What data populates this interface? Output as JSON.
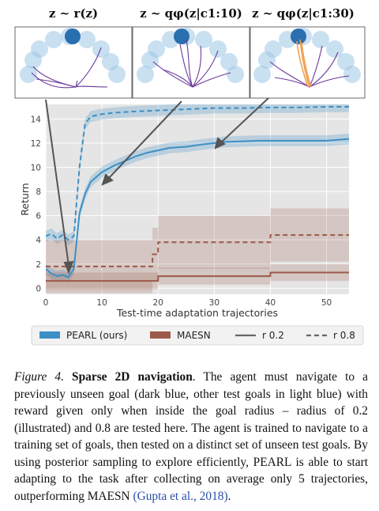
{
  "panels": [
    {
      "title": "z ~ r(z)"
    },
    {
      "title": "z ~ qφ(z|c1:10)"
    },
    {
      "title": "z ~ qφ(z|c1:30)"
    }
  ],
  "chart_data": {
    "type": "line",
    "xlabel": "Test-time adaptation trajectories",
    "ylabel": "Return",
    "xlim": [
      0,
      54
    ],
    "ylim": [
      -0.5,
      15.2
    ],
    "xticks": [
      0,
      10,
      20,
      30,
      40,
      50
    ],
    "yticks": [
      0,
      2,
      4,
      6,
      8,
      10,
      12,
      14
    ],
    "grid": true,
    "legend_position": "bottom",
    "series": [
      {
        "name": "PEARL (ours)",
        "style": "solid",
        "color": "#3c8fc6",
        "x": [
          0,
          1,
          2,
          3,
          4,
          5,
          6,
          7,
          8,
          9,
          10,
          12,
          14,
          16,
          18,
          20,
          22,
          25,
          28,
          30,
          32,
          35,
          38,
          40,
          45,
          50,
          54
        ],
        "y": [
          1.6,
          1.2,
          1.0,
          1.1,
          0.9,
          1.6,
          6.2,
          7.8,
          8.8,
          9.2,
          9.6,
          10.1,
          10.5,
          10.9,
          11.2,
          11.4,
          11.6,
          11.7,
          11.9,
          12.0,
          12.1,
          12.15,
          12.2,
          12.2,
          12.2,
          12.2,
          12.35
        ]
      },
      {
        "name": "PEARL (ours)",
        "style": "dashed",
        "color": "#3c8fc6",
        "x": [
          0,
          1,
          2,
          3,
          4,
          5,
          6,
          7,
          8,
          9,
          10,
          12,
          15,
          20,
          25,
          30,
          35,
          40,
          45,
          50,
          54
        ],
        "y": [
          4.3,
          4.5,
          4.1,
          4.4,
          4.0,
          4.3,
          10.0,
          13.6,
          14.2,
          14.3,
          14.4,
          14.5,
          14.6,
          14.7,
          14.8,
          14.9,
          14.9,
          14.95,
          14.95,
          15.0,
          15.0
        ]
      },
      {
        "name": "MAESN",
        "style": "solid",
        "color": "#9c5a4a",
        "x": [
          0,
          20,
          20,
          40,
          40,
          54
        ],
        "y": [
          0.6,
          0.6,
          1.0,
          1.0,
          1.3,
          1.3
        ]
      },
      {
        "name": "MAESN",
        "style": "dashed",
        "color": "#9c5a4a",
        "x": [
          0,
          19,
          19,
          20,
          20,
          40,
          40,
          54
        ],
        "y": [
          1.8,
          1.8,
          2.8,
          2.8,
          3.8,
          3.8,
          4.4,
          4.4
        ]
      }
    ],
    "legend": [
      {
        "label": "PEARL (ours)",
        "kind": "patch",
        "color": "#3c8fc6"
      },
      {
        "label": "MAESN",
        "kind": "patch",
        "color": "#9c5a4a"
      },
      {
        "label": "r 0.2",
        "kind": "solid-line",
        "color": "#666666"
      },
      {
        "label": "r 0.8",
        "kind": "dashed-line",
        "color": "#666666"
      }
    ]
  },
  "caption": {
    "label": "Figure 4.",
    "bold": "Sparse 2D navigation",
    "text": ". The agent must navigate to a previously unseen goal (dark blue, other test goals in light blue) with reward given only when inside the goal radius – radius of 0.2 (illustrated) and 0.8 are tested here. The agent is trained to navigate to a training set of goals, then tested on a distinct set of unseen test goals. By using posterior sampling to explore efficiently, PEARL is able to start adapting to the task after collecting on average only 5 trajectories, outperforming MAESN ",
    "citation": "(Gupta et al., 2018)",
    "end": "."
  }
}
